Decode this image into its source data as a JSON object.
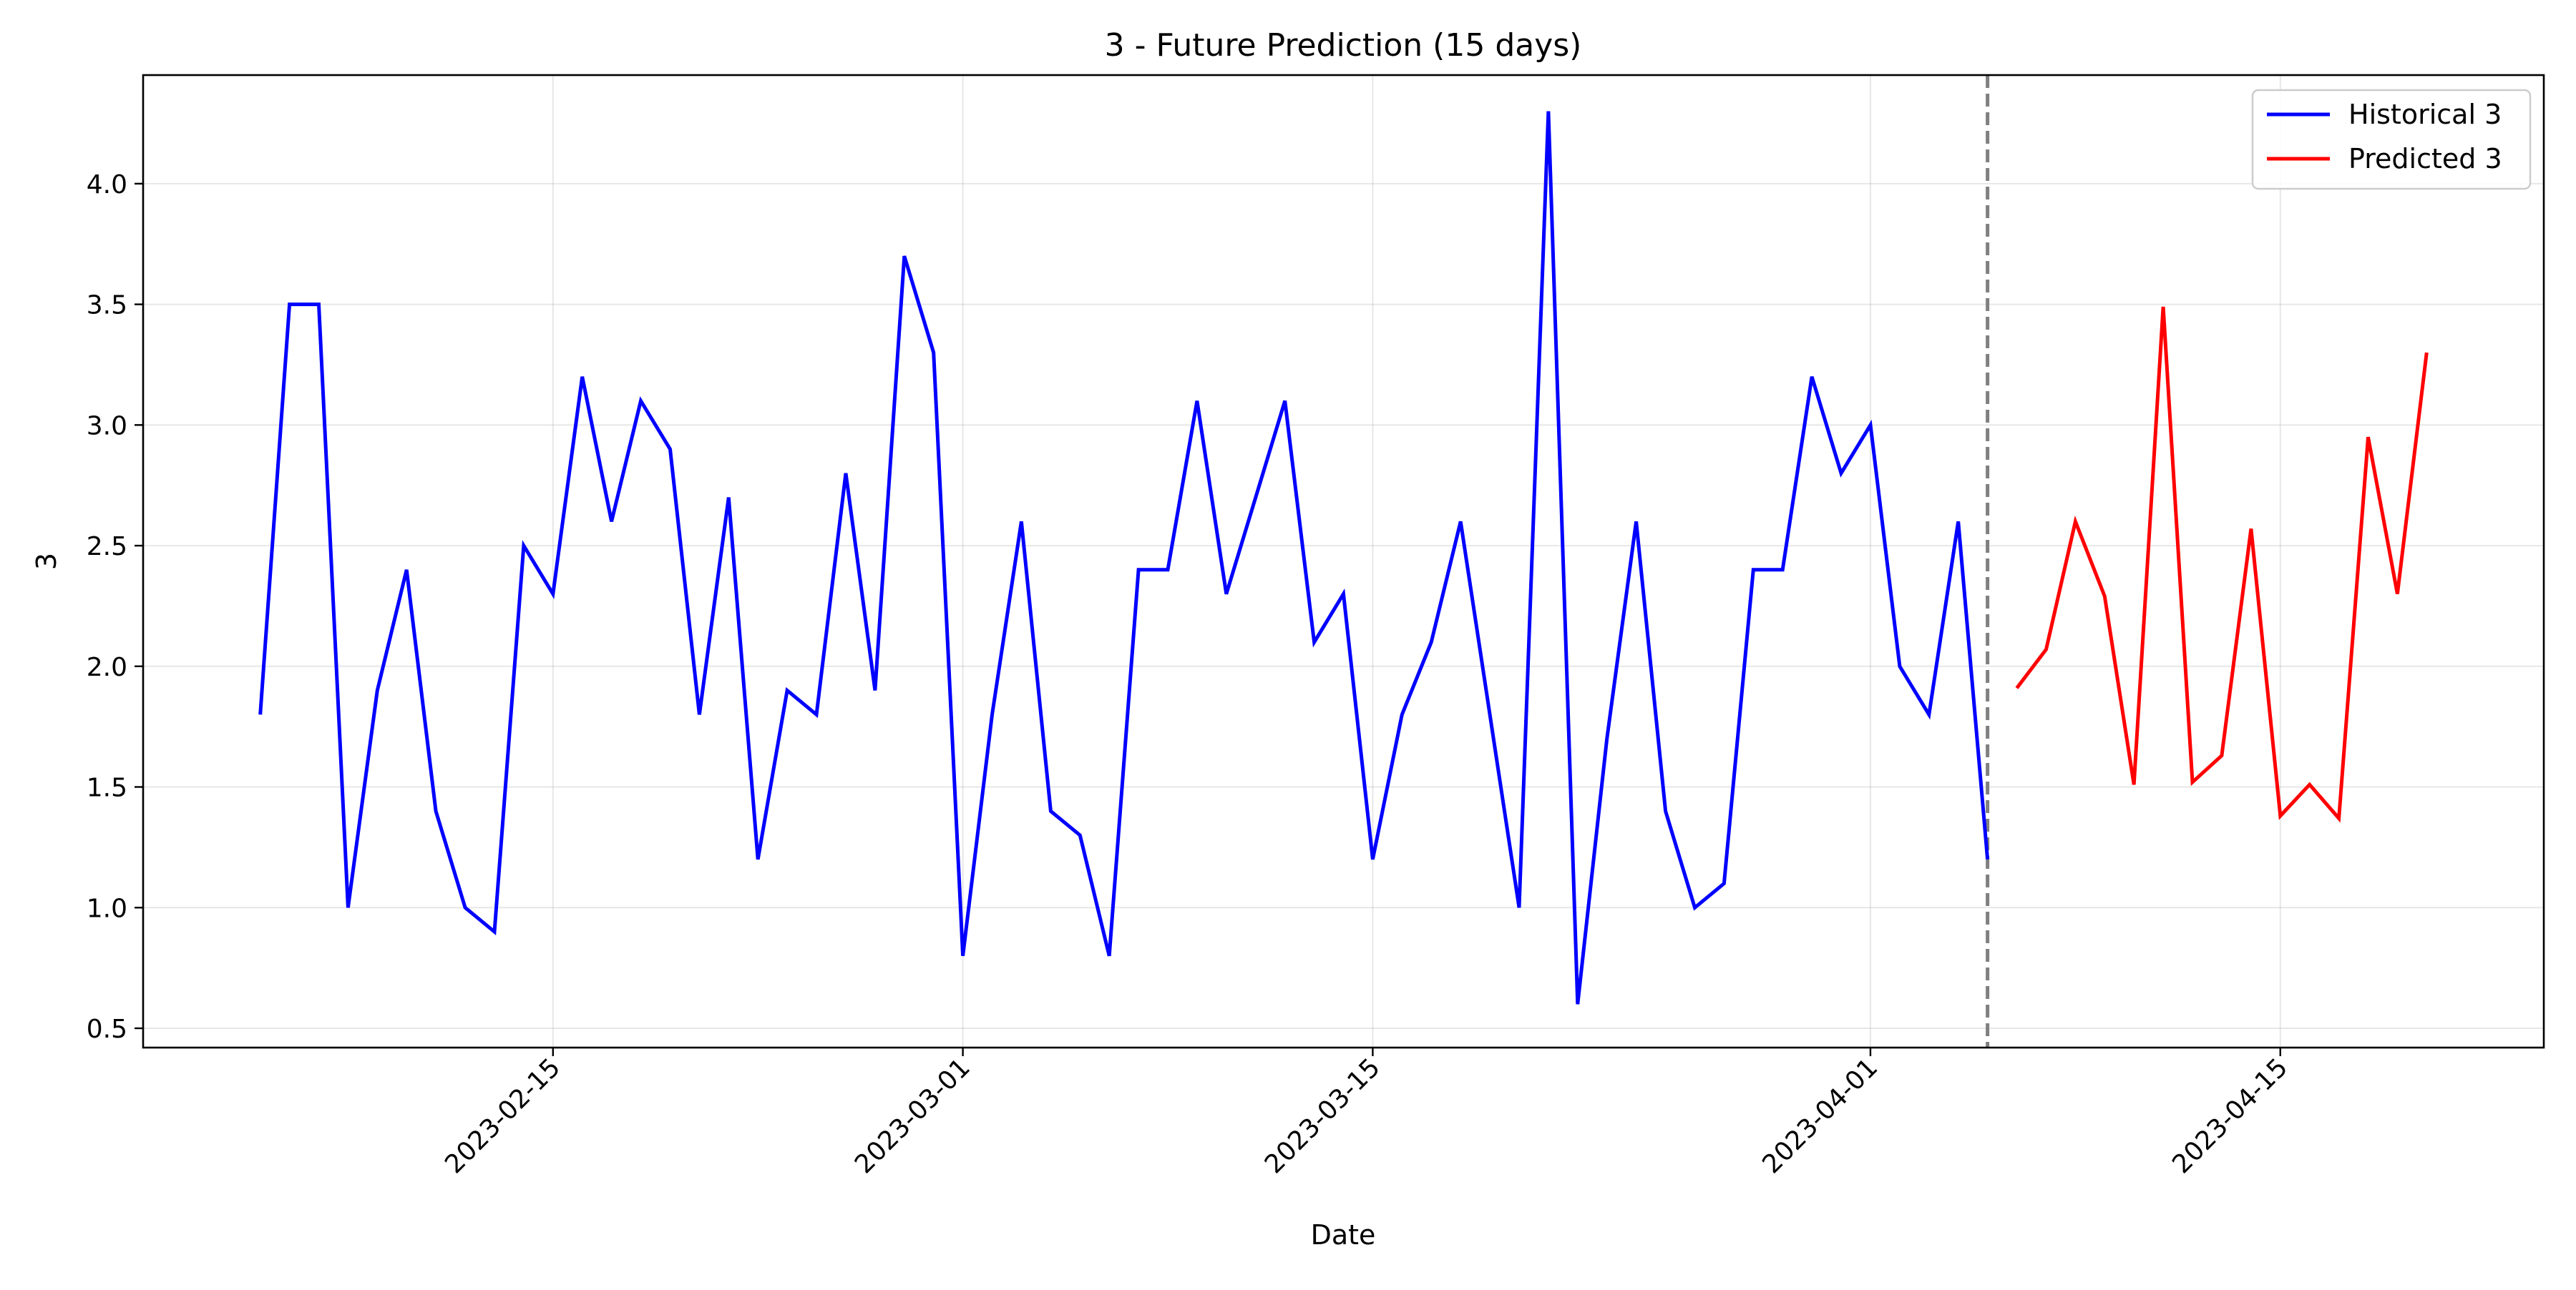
{
  "chart_data": {
    "type": "line",
    "title": "3 - Future Prediction (15 days)",
    "xlabel": "Date",
    "ylabel": "3",
    "x_ticks": [
      "2023-02-15",
      "2023-03-01",
      "2023-03-15",
      "2023-04-01",
      "2023-04-15"
    ],
    "y_ticks": [
      "0.5",
      "1.0",
      "1.5",
      "2.0",
      "2.5",
      "3.0",
      "3.5",
      "4.0"
    ],
    "xlim": [
      "2023-02-01",
      "2023-04-24"
    ],
    "ylim": [
      0.42,
      4.45
    ],
    "grid": true,
    "legend_position": "top-right",
    "forecast_start": "2023-04-05",
    "series": [
      {
        "name": "Historical 3",
        "color": "#0000ff",
        "x": [
          "2023-02-05",
          "2023-02-06",
          "2023-02-07",
          "2023-02-08",
          "2023-02-09",
          "2023-02-10",
          "2023-02-11",
          "2023-02-12",
          "2023-02-13",
          "2023-02-14",
          "2023-02-15",
          "2023-02-16",
          "2023-02-17",
          "2023-02-18",
          "2023-02-19",
          "2023-02-20",
          "2023-02-21",
          "2023-02-22",
          "2023-02-23",
          "2023-02-24",
          "2023-02-25",
          "2023-02-26",
          "2023-02-27",
          "2023-02-28",
          "2023-03-01",
          "2023-03-02",
          "2023-03-03",
          "2023-03-04",
          "2023-03-05",
          "2023-03-06",
          "2023-03-07",
          "2023-03-08",
          "2023-03-09",
          "2023-03-10",
          "2023-03-11",
          "2023-03-12",
          "2023-03-13",
          "2023-03-14",
          "2023-03-15",
          "2023-03-16",
          "2023-03-17",
          "2023-03-18",
          "2023-03-19",
          "2023-03-20",
          "2023-03-21",
          "2023-03-22",
          "2023-03-23",
          "2023-03-24",
          "2023-03-25",
          "2023-03-26",
          "2023-03-27",
          "2023-03-28",
          "2023-03-29",
          "2023-03-30",
          "2023-03-31",
          "2023-04-01",
          "2023-04-02",
          "2023-04-03",
          "2023-04-04",
          "2023-04-05"
        ],
        "values": [
          1.8,
          3.5,
          3.5,
          1.0,
          1.9,
          2.4,
          1.4,
          1.0,
          0.9,
          2.5,
          2.3,
          3.2,
          2.6,
          3.1,
          2.9,
          1.8,
          2.7,
          1.2,
          1.9,
          1.8,
          2.8,
          1.9,
          3.7,
          3.3,
          0.8,
          1.8,
          2.6,
          1.4,
          1.3,
          0.8,
          2.4,
          2.4,
          3.1,
          2.3,
          2.7,
          3.1,
          2.1,
          2.3,
          1.2,
          1.8,
          2.1,
          2.6,
          1.8,
          1.0,
          4.3,
          0.6,
          1.7,
          2.6,
          1.4,
          1.0,
          1.1,
          2.4,
          2.4,
          3.2,
          2.8,
          3.0,
          2.0,
          1.8,
          2.6,
          1.2
        ]
      },
      {
        "name": "Predicted 3",
        "color": "#ff0000",
        "x": [
          "2023-04-06",
          "2023-04-07",
          "2023-04-08",
          "2023-04-09",
          "2023-04-10",
          "2023-04-11",
          "2023-04-12",
          "2023-04-13",
          "2023-04-14",
          "2023-04-15",
          "2023-04-16",
          "2023-04-17",
          "2023-04-18",
          "2023-04-19",
          "2023-04-20"
        ],
        "values": [
          1.91,
          2.07,
          2.6,
          2.29,
          1.51,
          3.49,
          1.52,
          1.63,
          2.57,
          1.38,
          1.51,
          1.37,
          2.95,
          2.3,
          3.3
        ]
      }
    ]
  }
}
